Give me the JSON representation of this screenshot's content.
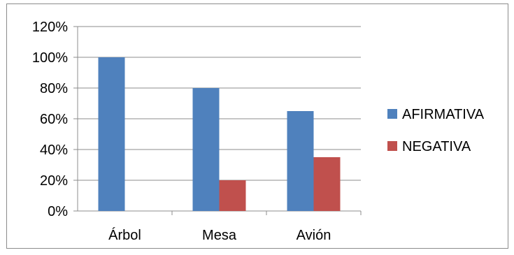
{
  "chart_data": {
    "type": "bar",
    "categories": [
      "Árbol",
      "Mesa",
      "Avión"
    ],
    "series": [
      {
        "name": "AFIRMATIVA",
        "color": "#4f81bd",
        "values": [
          100,
          80,
          65
        ]
      },
      {
        "name": "NEGATIVA",
        "color": "#c0504d",
        "values": [
          0,
          20,
          35
        ]
      }
    ],
    "y_ticks": [
      "0%",
      "20%",
      "40%",
      "60%",
      "80%",
      "100%",
      "120%"
    ],
    "ylim": [
      0,
      120
    ],
    "grid": true,
    "legend_position": "right"
  }
}
